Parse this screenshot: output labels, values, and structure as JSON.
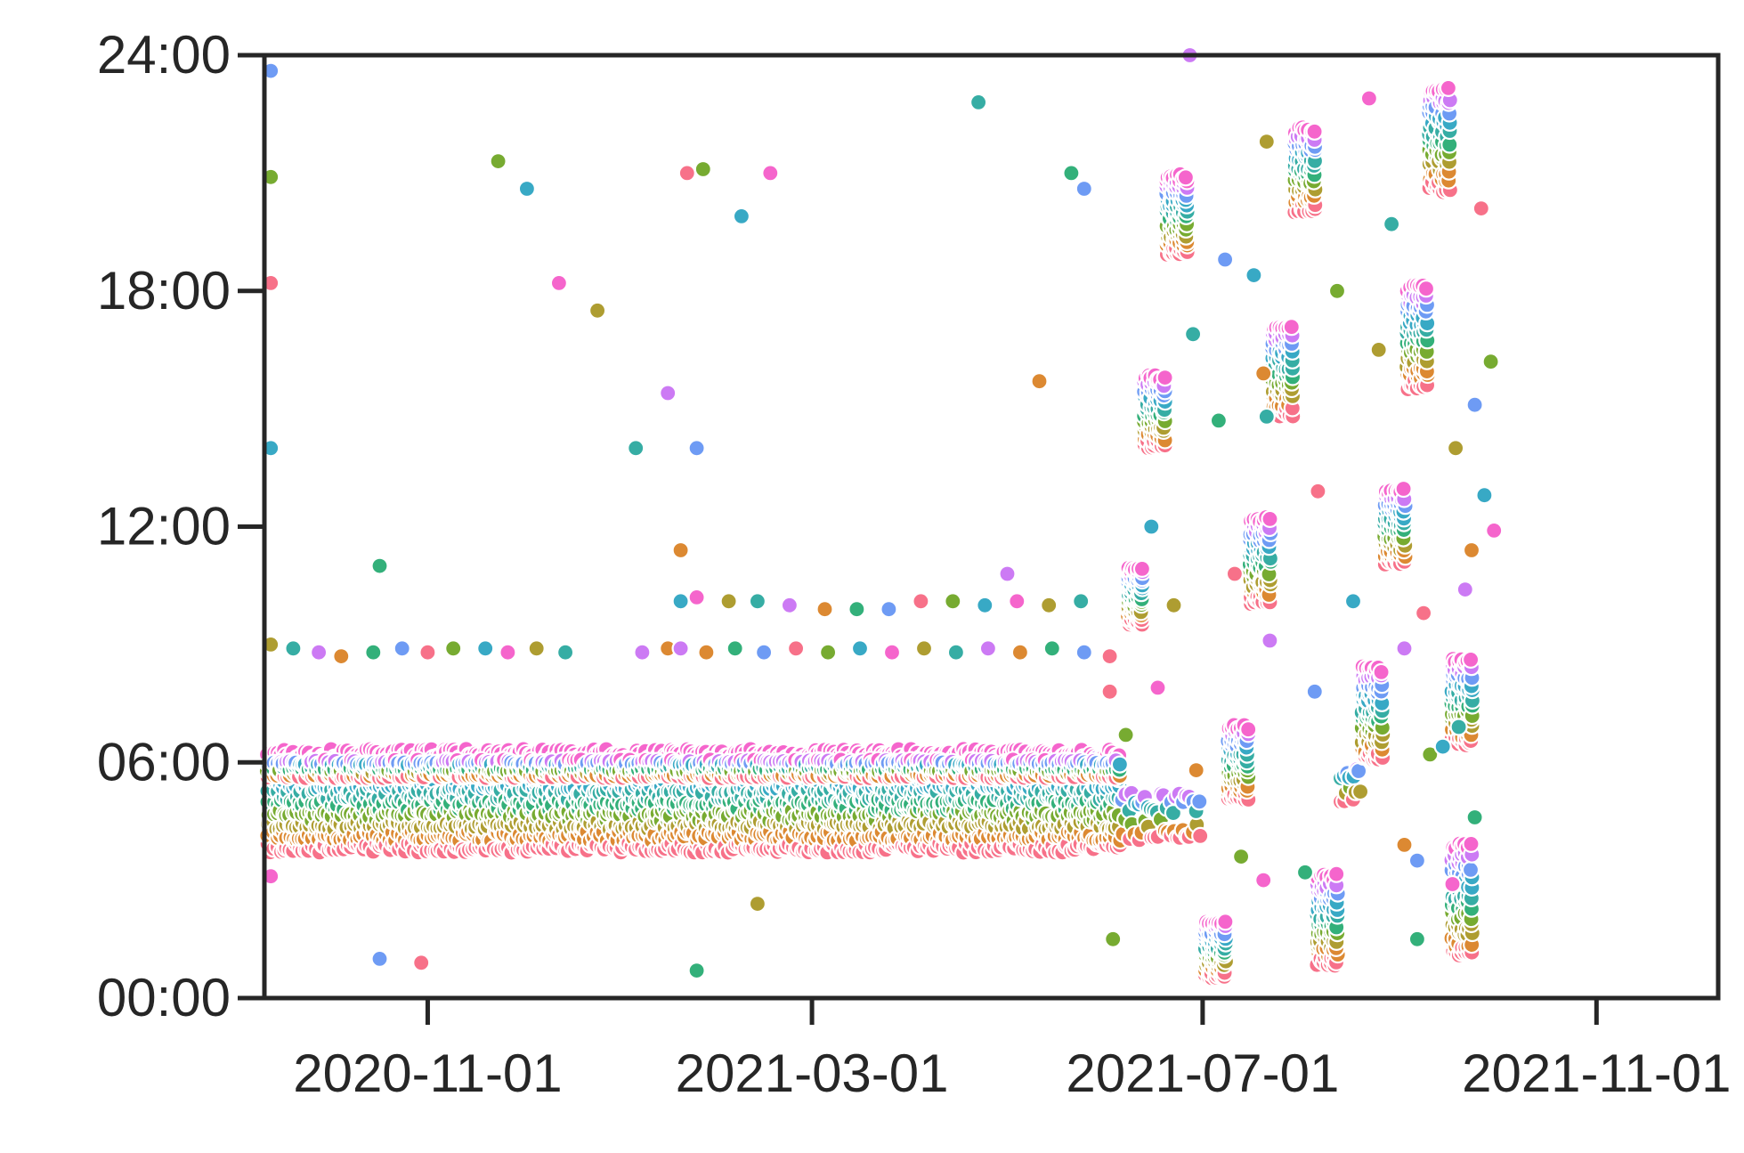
{
  "chart_data": {
    "type": "scatter",
    "title": "",
    "xlabel": "",
    "ylabel": "",
    "x_axis": {
      "type": "date",
      "range": [
        "2020-09-11",
        "2021-12-09"
      ],
      "ticks": [
        "2020-11-01",
        "2021-03-01",
        "2021-07-01",
        "2021-11-01"
      ]
    },
    "y_axis": {
      "type": "time_of_day_hours",
      "range": [
        0,
        24
      ],
      "ticks": [
        0,
        6,
        12,
        18,
        24
      ],
      "tick_labels": [
        "00:00",
        "06:00",
        "12:00",
        "18:00",
        "24:00"
      ]
    },
    "grid": false,
    "legend": "none",
    "marker": {
      "shape": "circle",
      "edge_color": "#ffffff"
    },
    "palette": [
      "#f77189",
      "#dc8932",
      "#ae9d31",
      "#77ab31",
      "#33b07a",
      "#36ada4",
      "#38a9c5",
      "#6e9bf4",
      "#cc7af4",
      "#f565cc"
    ],
    "bands": [
      {
        "start": "2020-09-12",
        "end": "2021-06-05",
        "step_days": 1,
        "y_min": 3.7,
        "y_max": 6.4,
        "per_day": 9
      },
      {
        "start": "2020-09-12",
        "end": "2021-06-05",
        "step_days": 1,
        "y_min": 5.6,
        "y_max": 6.1,
        "per_day": 3
      },
      {
        "start": "2021-06-06",
        "end": "2021-06-30",
        "step_days": 1,
        "y_min": 4.0,
        "y_max": 5.4,
        "per_day": 2
      },
      {
        "start": "2021-06-08",
        "end": "2021-06-12",
        "step_days": 1,
        "y_min": 9.5,
        "y_max": 11.0,
        "per_day": 14
      },
      {
        "start": "2021-06-13",
        "end": "2021-06-19",
        "step_days": 1,
        "y_min": 14.0,
        "y_max": 15.9,
        "per_day": 12
      },
      {
        "start": "2021-06-20",
        "end": "2021-06-26",
        "step_days": 1,
        "y_min": 18.9,
        "y_max": 21.0,
        "per_day": 14
      },
      {
        "start": "2021-07-02",
        "end": "2021-07-08",
        "step_days": 1,
        "y_min": 0.5,
        "y_max": 2.0,
        "per_day": 12
      },
      {
        "start": "2021-07-09",
        "end": "2021-07-15",
        "step_days": 1,
        "y_min": 5.0,
        "y_max": 7.0,
        "per_day": 12
      },
      {
        "start": "2021-07-16",
        "end": "2021-07-22",
        "step_days": 1,
        "y_min": 10.0,
        "y_max": 12.3,
        "per_day": 12
      },
      {
        "start": "2021-07-23",
        "end": "2021-07-29",
        "step_days": 1,
        "y_min": 14.8,
        "y_max": 17.2,
        "per_day": 12
      },
      {
        "start": "2021-07-30",
        "end": "2021-08-05",
        "step_days": 1,
        "y_min": 20.0,
        "y_max": 22.2,
        "per_day": 12
      },
      {
        "start": "2021-08-06",
        "end": "2021-08-12",
        "step_days": 1,
        "y_min": 0.8,
        "y_max": 3.2,
        "per_day": 12
      },
      {
        "start": "2021-08-13",
        "end": "2021-08-19",
        "step_days": 1,
        "y_min": 5.0,
        "y_max": 6.0,
        "per_day": 2
      },
      {
        "start": "2021-08-20",
        "end": "2021-08-26",
        "step_days": 1,
        "y_min": 6.0,
        "y_max": 8.5,
        "per_day": 12
      },
      {
        "start": "2021-08-27",
        "end": "2021-09-02",
        "step_days": 1,
        "y_min": 11.0,
        "y_max": 13.0,
        "per_day": 12
      },
      {
        "start": "2021-09-03",
        "end": "2021-09-09",
        "step_days": 1,
        "y_min": 15.5,
        "y_max": 18.2,
        "per_day": 12
      },
      {
        "start": "2021-09-10",
        "end": "2021-09-16",
        "step_days": 1,
        "y_min": 20.5,
        "y_max": 23.3,
        "per_day": 12
      },
      {
        "start": "2021-09-17",
        "end": "2021-09-23",
        "step_days": 1,
        "y_min": 1.0,
        "y_max": 4.0,
        "per_day": 12
      },
      {
        "start": "2021-09-17",
        "end": "2021-09-23",
        "step_days": 1,
        "y_min": 6.4,
        "y_max": 8.7,
        "per_day": 12
      }
    ],
    "points": [
      [
        "2020-09-13",
        23.6
      ],
      [
        "2020-09-13",
        18.2
      ],
      [
        "2020-09-13",
        20.9
      ],
      [
        "2020-09-13",
        14.0
      ],
      [
        "2020-09-13",
        3.1
      ],
      [
        "2020-09-13",
        9.0
      ],
      [
        "2020-09-20",
        8.9
      ],
      [
        "2020-09-28",
        8.8
      ],
      [
        "2020-10-05",
        8.7
      ],
      [
        "2020-10-15",
        8.8
      ],
      [
        "2020-10-24",
        8.9
      ],
      [
        "2020-11-01",
        8.8
      ],
      [
        "2020-11-09",
        8.9
      ],
      [
        "2020-11-19",
        8.9
      ],
      [
        "2020-11-26",
        8.8
      ],
      [
        "2020-12-05",
        8.9
      ],
      [
        "2020-12-14",
        8.8
      ],
      [
        "2021-01-07",
        8.8
      ],
      [
        "2021-01-15",
        8.9
      ],
      [
        "2020-10-17",
        11.0
      ],
      [
        "2020-10-17",
        1.0
      ],
      [
        "2020-10-30",
        0.9
      ],
      [
        "2020-11-23",
        21.3
      ],
      [
        "2020-12-02",
        20.6
      ],
      [
        "2020-12-12",
        18.2
      ],
      [
        "2020-12-24",
        17.5
      ],
      [
        "2021-01-05",
        14.0
      ],
      [
        "2021-01-15",
        15.4
      ],
      [
        "2021-01-19",
        11.4
      ],
      [
        "2021-01-24",
        0.7
      ],
      [
        "2021-01-24",
        14.0
      ],
      [
        "2021-01-21",
        21.0
      ],
      [
        "2021-01-26",
        21.1
      ],
      [
        "2021-02-07",
        19.9
      ],
      [
        "2021-02-16",
        21.0
      ],
      [
        "2021-02-12",
        2.4
      ],
      [
        "2021-04-22",
        22.8
      ],
      [
        "2021-05-01",
        10.8
      ],
      [
        "2021-05-11",
        15.7
      ],
      [
        "2021-05-21",
        21.0
      ],
      [
        "2021-05-25",
        20.6
      ],
      [
        "2021-06-02",
        7.8
      ],
      [
        "2021-06-03",
        1.5
      ],
      [
        "2021-01-19",
        10.1
      ],
      [
        "2021-01-24",
        10.2
      ],
      [
        "2021-02-03",
        10.1
      ],
      [
        "2021-02-12",
        10.1
      ],
      [
        "2021-02-22",
        10.0
      ],
      [
        "2021-03-05",
        9.9
      ],
      [
        "2021-03-15",
        9.9
      ],
      [
        "2021-03-25",
        9.9
      ],
      [
        "2021-04-04",
        10.1
      ],
      [
        "2021-04-14",
        10.1
      ],
      [
        "2021-04-24",
        10.0
      ],
      [
        "2021-05-04",
        10.1
      ],
      [
        "2021-05-14",
        10.0
      ],
      [
        "2021-05-24",
        10.1
      ],
      [
        "2021-01-19",
        8.9
      ],
      [
        "2021-01-27",
        8.8
      ],
      [
        "2021-02-05",
        8.9
      ],
      [
        "2021-02-14",
        8.8
      ],
      [
        "2021-02-24",
        8.9
      ],
      [
        "2021-03-06",
        8.8
      ],
      [
        "2021-03-16",
        8.9
      ],
      [
        "2021-03-26",
        8.8
      ],
      [
        "2021-04-05",
        8.9
      ],
      [
        "2021-04-15",
        8.8
      ],
      [
        "2021-04-25",
        8.9
      ],
      [
        "2021-05-05",
        8.8
      ],
      [
        "2021-05-15",
        8.9
      ],
      [
        "2021-05-25",
        8.8
      ],
      [
        "2021-06-02",
        8.7
      ],
      [
        "2021-06-07",
        6.7
      ],
      [
        "2021-06-15",
        12.0
      ],
      [
        "2021-06-17",
        7.9
      ],
      [
        "2021-06-22",
        10.0
      ],
      [
        "2021-06-28",
        16.9
      ],
      [
        "2021-06-27",
        24.0
      ],
      [
        "2021-06-29",
        5.8
      ],
      [
        "2021-07-06",
        14.7
      ],
      [
        "2021-07-08",
        18.8
      ],
      [
        "2021-07-11",
        10.8
      ],
      [
        "2021-07-13",
        3.6
      ],
      [
        "2021-07-17",
        18.4
      ],
      [
        "2021-07-20",
        3.0
      ],
      [
        "2021-07-21",
        21.8
      ],
      [
        "2021-07-21",
        14.8
      ],
      [
        "2021-07-22",
        9.1
      ],
      [
        "2021-07-20",
        15.9
      ],
      [
        "2021-08-02",
        3.2
      ],
      [
        "2021-08-05",
        7.8
      ],
      [
        "2021-08-06",
        12.9
      ],
      [
        "2021-08-12",
        18.0
      ],
      [
        "2021-08-17",
        10.1
      ],
      [
        "2021-08-22",
        22.9
      ],
      [
        "2021-08-25",
        16.5
      ],
      [
        "2021-08-29",
        19.7
      ],
      [
        "2021-09-02",
        8.9
      ],
      [
        "2021-09-02",
        3.9
      ],
      [
        "2021-09-06",
        1.5
      ],
      [
        "2021-09-06",
        3.5
      ],
      [
        "2021-09-08",
        9.8
      ],
      [
        "2021-09-10",
        6.2
      ],
      [
        "2021-09-14",
        6.4
      ],
      [
        "2021-09-17",
        2.9
      ],
      [
        "2021-09-18",
        14.0
      ],
      [
        "2021-09-19",
        6.9
      ],
      [
        "2021-09-21",
        10.4
      ],
      [
        "2021-09-23",
        11.4
      ],
      [
        "2021-09-24",
        4.6
      ],
      [
        "2021-09-24",
        15.1
      ],
      [
        "2021-09-26",
        20.1
      ],
      [
        "2021-09-29",
        16.2
      ],
      [
        "2021-09-27",
        12.8
      ],
      [
        "2021-09-30",
        11.9
      ]
    ]
  }
}
